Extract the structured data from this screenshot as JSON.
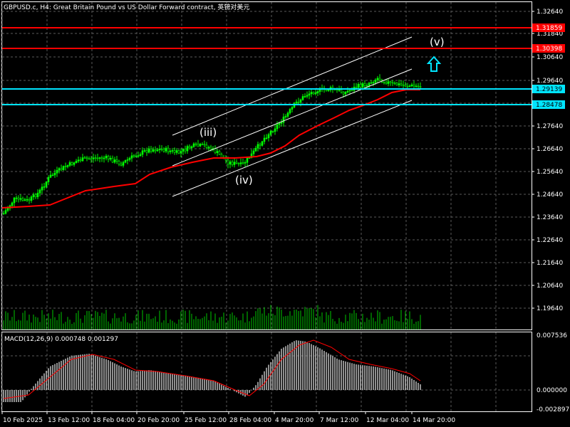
{
  "header": {
    "title": "GBPUSD.c, H4:  Great Britain Pound vs US Dollar Forward contract, 英镑对美元"
  },
  "indicator": {
    "macd_label": "MACD(12,26,9) 0.000748 0.001297"
  },
  "price_axis": {
    "ticks": [
      "1.32640",
      "1.31840",
      "1.30640",
      "1.29640",
      "1.28640",
      "1.27640",
      "1.26640",
      "1.25640",
      "1.24640",
      "1.23640",
      "1.22640",
      "1.21640",
      "1.20640",
      "1.19640"
    ]
  },
  "macd_axis": {
    "ticks": [
      "0.007536",
      "0.000000",
      "-0.002897"
    ]
  },
  "time_axis": {
    "ticks": [
      "10 Feb 2025",
      "13 Feb 12:00",
      "18 Feb 04:00",
      "20 Feb 20:00",
      "25 Feb 12:00",
      "28 Feb 04:00",
      "4 Mar 20:00",
      "7 Mar 12:00",
      "12 Mar 04:00",
      "14 Mar 20:00"
    ]
  },
  "levels": {
    "red_upper": "1.31859",
    "red_lower": "1.30398",
    "cyan_upper": "1.29139",
    "cyan_lower": "1.28478"
  },
  "wave_labels": {
    "iii": "(iii)",
    "iv": "(iv)",
    "v": "(v)"
  },
  "colors": {
    "background": "#000000",
    "candle": "#00ff00",
    "moving_average": "#ff0000",
    "grid": "#5a5a5a",
    "channel": "#ffffff",
    "cyan_level": "#00e5ff",
    "red_level": "#ff0000",
    "macd_hist": "#bfbfbf",
    "macd_signal": "#ff0000",
    "arrow": "#00e5ff"
  },
  "icons": {
    "arrow": "up-arrow-icon"
  }
}
